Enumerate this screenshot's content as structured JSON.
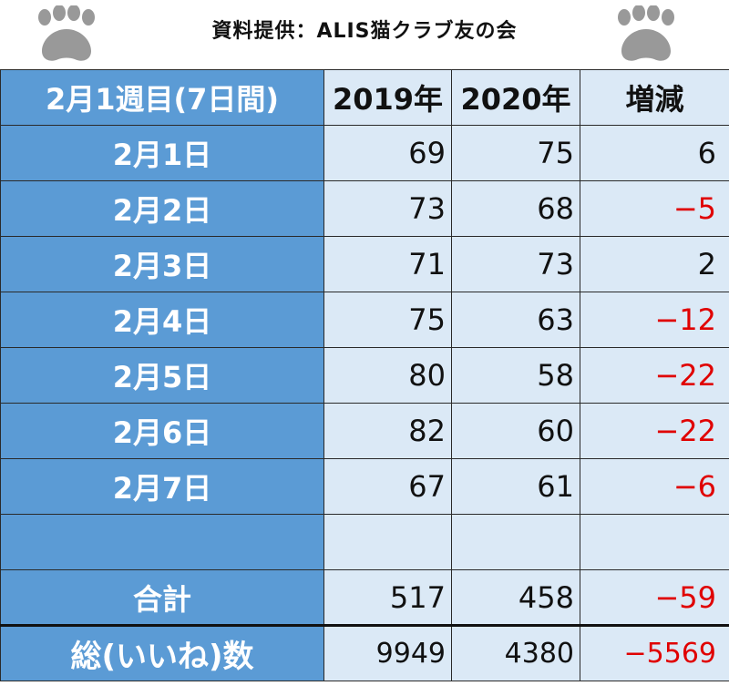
{
  "caption": "資料提供：ALIS猫クラブ友の会",
  "colors": {
    "label_fill": "#5b9bd5",
    "cell_fill": "#dbe9f6",
    "negative": "#e00000",
    "paw": "#999999"
  },
  "icons": {
    "left": "paw-print-icon",
    "right": "paw-print-icon"
  },
  "chart_data": {
    "type": "table",
    "columns": [
      "2月1週目(7日間)",
      "2019年",
      "2020年",
      "増減"
    ],
    "rows": [
      {
        "label": "2月1日",
        "y2019": "69",
        "y2020": "75",
        "diff": "6",
        "diff_value": 6
      },
      {
        "label": "2月2日",
        "y2019": "73",
        "y2020": "68",
        "diff": "−5",
        "diff_value": -5
      },
      {
        "label": "2月3日",
        "y2019": "71",
        "y2020": "73",
        "diff": "2",
        "diff_value": 2
      },
      {
        "label": "2月4日",
        "y2019": "75",
        "y2020": "63",
        "diff": "−12",
        "diff_value": -12
      },
      {
        "label": "2月5日",
        "y2019": "80",
        "y2020": "58",
        "diff": "−22",
        "diff_value": -22
      },
      {
        "label": "2月6日",
        "y2019": "82",
        "y2020": "60",
        "diff": "−22",
        "diff_value": -22
      },
      {
        "label": "2月7日",
        "y2019": "67",
        "y2020": "61",
        "diff": "−6",
        "diff_value": -6
      },
      {
        "label": "",
        "y2019": "",
        "y2020": "",
        "diff": "",
        "diff_value": 0
      }
    ],
    "total": {
      "label": "合計",
      "y2019": "517",
      "y2020": "458",
      "diff": "−59",
      "diff_value": -59
    },
    "grand_total": {
      "label": "総(いいね)数",
      "y2019": "9949",
      "y2020": "4380",
      "diff": "−5569",
      "diff_value": -5569
    }
  }
}
